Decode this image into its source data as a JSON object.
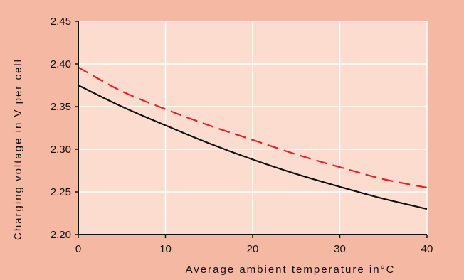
{
  "chart_data": {
    "type": "line",
    "xlabel": "Average ambient temperature in°C",
    "ylabel": "Charging voltage in V per cell",
    "xlim": [
      0,
      40
    ],
    "ylim": [
      2.2,
      2.45
    ],
    "x_ticks": [
      "0",
      "10",
      "20",
      "30",
      "40"
    ],
    "y_ticks": [
      "2.20",
      "2.25",
      "2.30",
      "2.35",
      "2.40",
      "2.45"
    ],
    "grid": true,
    "series": [
      {
        "style": "solid",
        "color": "#111111",
        "x": [
          0,
          5,
          10,
          15,
          20,
          25,
          30,
          35,
          40
        ],
        "y": [
          2.375,
          2.35,
          2.328,
          2.307,
          2.288,
          2.271,
          2.256,
          2.242,
          2.23
        ]
      },
      {
        "style": "dashed",
        "color": "#e3202c",
        "x": [
          0,
          5,
          10,
          15,
          20,
          25,
          30,
          35,
          40
        ],
        "y": [
          2.396,
          2.368,
          2.347,
          2.328,
          2.311,
          2.294,
          2.279,
          2.265,
          2.255
        ]
      }
    ]
  },
  "colors": {
    "page_background": "#f5b9a3",
    "plot_background": "#fbdccf",
    "grid": "#ffffff",
    "axis": "#111111"
  }
}
